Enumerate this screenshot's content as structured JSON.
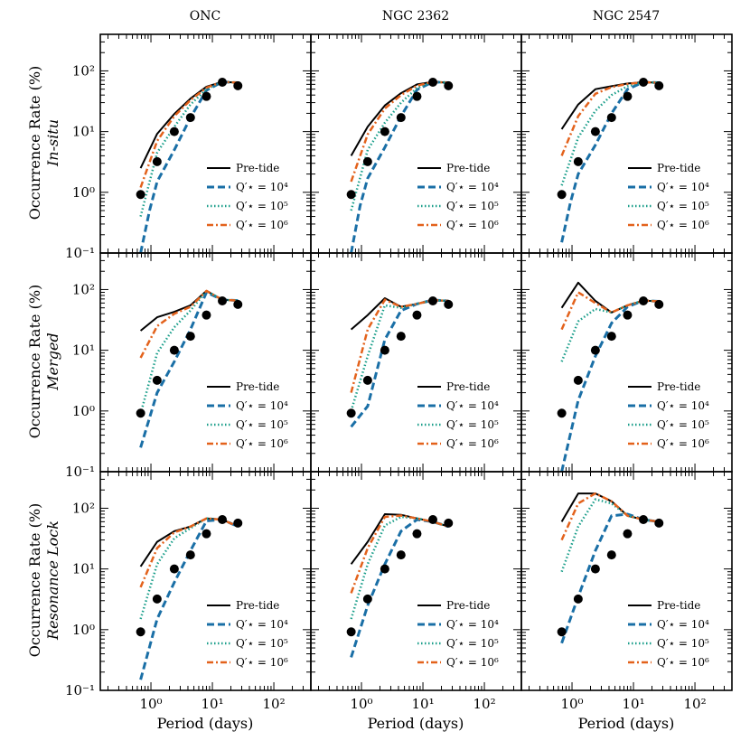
{
  "colors": {
    "pretide": "#000000",
    "q4": "#1a6fa6",
    "q5": "#1a9e8a",
    "q6": "#e3621c",
    "observed": "#000000"
  },
  "legend": {
    "pretide": "Pre-tide",
    "q4": "Q′⋆ = 10⁴",
    "q5": "Q′⋆ = 10⁵",
    "q6": "Q′⋆ = 10⁶"
  },
  "chart_data": {
    "type": "line",
    "x_scale": "log",
    "y_scale": "log",
    "xlim": [
      0.15,
      400
    ],
    "ylim": [
      0.1,
      400
    ],
    "xlabel": "Period (days)",
    "x_ticks": [
      1,
      10,
      100
    ],
    "x_tick_labels": [
      "10⁰",
      "10¹",
      "10²"
    ],
    "y_ticks": [
      0.1,
      1,
      10,
      100
    ],
    "y_tick_labels": [
      "10⁻¹",
      "10⁰",
      "10¹",
      "10²"
    ],
    "columns": [
      "ONC",
      "NGC 2362",
      "NGC 2547"
    ],
    "rows": [
      {
        "ylabel": "Occurrence Rate (%)",
        "sublabel": "In-situ"
      },
      {
        "ylabel": "Occurrence Rate (%)",
        "sublabel": "Merged"
      },
      {
        "ylabel": "Occurrence Rate (%)",
        "sublabel": "Resonance Lock"
      }
    ],
    "observed": {
      "x": [
        0.68,
        1.26,
        2.4,
        4.4,
        8.0,
        14.5,
        26.0
      ],
      "y": [
        0.92,
        3.2,
        10,
        17,
        38,
        65,
        57
      ]
    },
    "panels": [
      {
        "row": 0,
        "col": 0,
        "pretide": {
          "x": [
            0.68,
            1.26,
            2.4,
            4.4,
            8.0,
            14.5,
            26.0
          ],
          "y": [
            2.5,
            9.2,
            19.5,
            35,
            55,
            66,
            64
          ]
        },
        "q4": {
          "x": [
            0.68,
            0.95,
            1.26,
            2.4,
            4.4,
            8.0,
            14.5,
            26.0
          ],
          "y": [
            0.1,
            0.5,
            1.5,
            5.0,
            17,
            48,
            66,
            64
          ]
        },
        "q5": {
          "x": [
            0.68,
            1.26,
            2.4,
            4.4,
            8.0,
            14.5,
            26.0
          ],
          "y": [
            0.4,
            4.5,
            12,
            28,
            50,
            66,
            64
          ]
        },
        "q6": {
          "x": [
            0.68,
            1.26,
            2.4,
            4.4,
            8.0,
            14.5,
            26.0
          ],
          "y": [
            1.2,
            7,
            18,
            33,
            53,
            66,
            64
          ]
        }
      },
      {
        "row": 0,
        "col": 1,
        "pretide": {
          "x": [
            0.68,
            1.26,
            2.4,
            4.4,
            8.0,
            14.5,
            26.0
          ],
          "y": [
            4,
            12,
            27,
            43,
            60,
            66,
            64
          ]
        },
        "q4": {
          "x": [
            0.68,
            0.95,
            1.26,
            2.4,
            4.4,
            8.0,
            14.5,
            26.0
          ],
          "y": [
            0.1,
            0.6,
            1.7,
            5.5,
            18,
            49,
            66,
            64
          ]
        },
        "q5": {
          "x": [
            0.68,
            1.26,
            2.4,
            4.4,
            8.0,
            14.5,
            26.0
          ],
          "y": [
            0.5,
            5,
            14,
            30,
            52,
            66,
            64
          ]
        },
        "q6": {
          "x": [
            0.68,
            1.26,
            2.4,
            4.4,
            8.0,
            14.5,
            26.0
          ],
          "y": [
            1.5,
            9,
            24,
            40,
            57,
            66,
            64
          ]
        }
      },
      {
        "row": 0,
        "col": 2,
        "pretide": {
          "x": [
            0.68,
            1.26,
            2.4,
            4.4,
            8.0,
            14.5,
            26.0
          ],
          "y": [
            11,
            28,
            50,
            56,
            62,
            65,
            64
          ]
        },
        "q4": {
          "x": [
            0.68,
            0.95,
            1.26,
            2.4,
            4.4,
            8.0,
            14.5,
            26.0
          ],
          "y": [
            0.15,
            0.7,
            2.0,
            6,
            20,
            50,
            65,
            64
          ]
        },
        "q5": {
          "x": [
            0.68,
            1.26,
            2.4,
            4.4,
            8.0,
            14.5,
            26.0
          ],
          "y": [
            1.3,
            8,
            22,
            40,
            56,
            65,
            64
          ]
        },
        "q6": {
          "x": [
            0.68,
            1.26,
            2.4,
            4.4,
            8.0,
            14.5,
            26.0
          ],
          "y": [
            4,
            18,
            42,
            54,
            61,
            65,
            64
          ]
        }
      },
      {
        "row": 1,
        "col": 0,
        "pretide": {
          "x": [
            0.68,
            1.26,
            2.4,
            4.4,
            8.0,
            14.5,
            26.0
          ],
          "y": [
            21,
            35,
            43,
            55,
            95,
            68,
            66
          ]
        },
        "q4": {
          "x": [
            0.68,
            1.26,
            2.4,
            4.4,
            8.0,
            14.5,
            26.0
          ],
          "y": [
            0.25,
            2.0,
            6.5,
            22,
            90,
            68,
            66
          ]
        },
        "q5": {
          "x": [
            0.68,
            1.26,
            2.4,
            4.4,
            8.0,
            14.5,
            26.0
          ],
          "y": [
            0.9,
            9,
            24,
            45,
            95,
            68,
            66
          ]
        },
        "q6": {
          "x": [
            0.68,
            1.26,
            2.4,
            4.4,
            8.0,
            14.5,
            26.0
          ],
          "y": [
            7.5,
            25,
            40,
            52,
            95,
            68,
            66
          ]
        }
      },
      {
        "row": 1,
        "col": 1,
        "pretide": {
          "x": [
            0.68,
            1.26,
            2.4,
            4.4,
            8.0,
            14.5,
            26.0
          ],
          "y": [
            22,
            38,
            72,
            52,
            58,
            67,
            65
          ]
        },
        "q4": {
          "x": [
            0.68,
            1.26,
            2.4,
            4.4,
            8.0,
            14.5,
            26.0
          ],
          "y": [
            0.55,
            1.2,
            15,
            45,
            58,
            67,
            65
          ]
        },
        "q5": {
          "x": [
            0.68,
            1.26,
            2.4,
            4.4,
            8.0,
            14.5,
            26.0
          ],
          "y": [
            1.0,
            8,
            55,
            50,
            58,
            67,
            65
          ]
        },
        "q6": {
          "x": [
            0.68,
            1.26,
            2.4,
            4.4,
            8.0,
            14.5,
            26.0
          ],
          "y": [
            2.0,
            22,
            68,
            52,
            58,
            67,
            65
          ]
        }
      },
      {
        "row": 1,
        "col": 2,
        "pretide": {
          "x": [
            0.68,
            1.26,
            2.4,
            4.4,
            8.0,
            14.5,
            26.0
          ],
          "y": [
            50,
            130,
            65,
            42,
            55,
            66,
            64
          ]
        },
        "q4": {
          "x": [
            0.68,
            1.26,
            2.4,
            4.4,
            8.0,
            14.5,
            26.0
          ],
          "y": [
            0.1,
            1.5,
            8,
            28,
            52,
            66,
            64
          ]
        },
        "q5": {
          "x": [
            0.68,
            1.26,
            2.4,
            4.4,
            8.0,
            14.5,
            26.0
          ],
          "y": [
            6.5,
            30,
            48,
            42,
            55,
            66,
            64
          ]
        },
        "q6": {
          "x": [
            0.68,
            1.26,
            2.4,
            4.4,
            8.0,
            14.5,
            26.0
          ],
          "y": [
            22,
            90,
            60,
            42,
            55,
            66,
            64
          ]
        }
      },
      {
        "row": 2,
        "col": 0,
        "pretide": {
          "x": [
            0.68,
            1.26,
            2.4,
            4.4,
            8.0,
            14.5,
            26.0
          ],
          "y": [
            11,
            28,
            42,
            50,
            68,
            65,
            50
          ]
        },
        "q4": {
          "x": [
            0.68,
            1.26,
            2.4,
            4.4,
            8.0,
            14.5,
            26.0
          ],
          "y": [
            0.15,
            1.5,
            6,
            20,
            62,
            65,
            50
          ]
        },
        "q5": {
          "x": [
            0.68,
            1.26,
            2.4,
            4.4,
            8.0,
            14.5,
            26.0
          ],
          "y": [
            1.5,
            12,
            32,
            47,
            68,
            65,
            50
          ]
        },
        "q6": {
          "x": [
            0.68,
            1.26,
            2.4,
            4.4,
            8.0,
            14.5,
            26.0
          ],
          "y": [
            5,
            22,
            40,
            50,
            68,
            65,
            50
          ]
        }
      },
      {
        "row": 2,
        "col": 1,
        "pretide": {
          "x": [
            0.68,
            1.26,
            2.4,
            4.4,
            8.0,
            14.5,
            26.0
          ],
          "y": [
            12,
            28,
            80,
            78,
            68,
            60,
            50
          ]
        },
        "q4": {
          "x": [
            0.68,
            1.26,
            2.4,
            4.4,
            8.0,
            14.5,
            26.0
          ],
          "y": [
            0.35,
            2.5,
            12,
            42,
            65,
            60,
            50
          ]
        },
        "q5": {
          "x": [
            0.68,
            1.26,
            2.4,
            4.4,
            8.0,
            14.5,
            26.0
          ],
          "y": [
            1.5,
            12,
            52,
            72,
            68,
            60,
            50
          ]
        },
        "q6": {
          "x": [
            0.68,
            1.26,
            2.4,
            4.4,
            8.0,
            14.5,
            26.0
          ],
          "y": [
            4,
            22,
            72,
            76,
            68,
            60,
            50
          ]
        }
      },
      {
        "row": 2,
        "col": 2,
        "pretide": {
          "x": [
            0.68,
            1.26,
            2.4,
            4.4,
            8.0,
            14.5,
            26.0
          ],
          "y": [
            60,
            175,
            175,
            130,
            75,
            65,
            60
          ]
        },
        "q4": {
          "x": [
            0.68,
            1.26,
            2.4,
            4.4,
            8.0,
            14.5,
            26.0
          ],
          "y": [
            0.6,
            3.5,
            20,
            75,
            80,
            65,
            60
          ]
        },
        "q5": {
          "x": [
            0.68,
            1.26,
            2.4,
            4.4,
            8.0,
            14.5,
            26.0
          ],
          "y": [
            9,
            50,
            140,
            120,
            75,
            65,
            60
          ]
        },
        "q6": {
          "x": [
            0.68,
            1.26,
            2.4,
            4.4,
            8.0,
            14.5,
            26.0
          ],
          "y": [
            30,
            120,
            175,
            130,
            75,
            65,
            60
          ]
        }
      }
    ]
  }
}
